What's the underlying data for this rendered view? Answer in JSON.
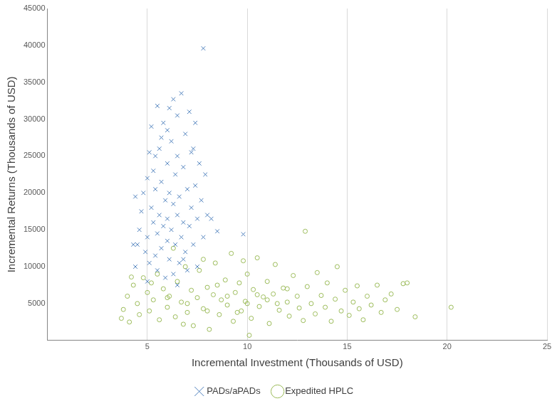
{
  "chart_data": {
    "type": "scatter",
    "x_label": "Incremental Investment (Thousands of USD)",
    "y_label": "Incremental Returns (Thousands of USD)",
    "xlim": [
      0,
      25
    ],
    "xticks": [
      5,
      10,
      15,
      20,
      25
    ],
    "ylim": [
      0,
      45000
    ],
    "yticks": [
      5000,
      10000,
      15000,
      20000,
      25000,
      30000,
      35000,
      40000,
      45000
    ],
    "grid": "x",
    "legend": "bottom",
    "series": [
      {
        "name": "PADs/aPADs",
        "color": "#4f81bd",
        "marker": "x",
        "x": [
          4.5,
          4.6,
          4.7,
          4.8,
          4.9,
          5.0,
          5.0,
          5.1,
          5.1,
          5.2,
          5.2,
          5.3,
          5.3,
          5.4,
          5.4,
          5.5,
          5.5,
          5.5,
          5.6,
          5.6,
          5.7,
          5.7,
          5.8,
          5.8,
          5.9,
          5.9,
          6.0,
          6.0,
          6.0,
          6.1,
          6.1,
          6.1,
          6.2,
          6.2,
          6.3,
          6.3,
          6.3,
          6.4,
          6.4,
          6.5,
          6.5,
          6.5,
          6.6,
          6.6,
          6.7,
          6.7,
          6.8,
          6.8,
          6.9,
          6.9,
          7.0,
          7.0,
          7.1,
          7.1,
          7.2,
          7.2,
          7.3,
          7.4,
          7.4,
          7.5,
          7.5,
          7.6,
          7.7,
          7.8,
          7.8,
          7.9,
          8.0,
          8.2,
          8.5,
          9.8,
          4.3,
          4.4,
          4.4,
          5.0,
          6.5,
          7.3,
          5.7,
          6.0,
          5.4,
          6.8
        ],
        "values": [
          13000,
          15000,
          17500,
          20000,
          12000,
          22000,
          14000,
          25500,
          10500,
          18000,
          29000,
          16000,
          23000,
          11500,
          20500,
          31800,
          14500,
          9500,
          17000,
          26000,
          12500,
          21500,
          15500,
          29500,
          19000,
          8500,
          24000,
          13500,
          16500,
          31500,
          20000,
          11000,
          27000,
          15000,
          32700,
          18500,
          9000,
          22500,
          13000,
          30500,
          17000,
          25000,
          10500,
          19500,
          33500,
          14000,
          23500,
          16000,
          12000,
          28000,
          20500,
          9500,
          31000,
          15500,
          18000,
          25500,
          13000,
          21000,
          29500,
          16500,
          10000,
          24000,
          19000,
          39600,
          14000,
          22500,
          17000,
          16500,
          14800,
          14400,
          13000,
          19500,
          10000,
          8000,
          7500,
          26000,
          27500,
          28500,
          25000,
          11000
        ]
      },
      {
        "name": "Expedited HPLC",
        "color": "#9bbb59",
        "marker": "circle",
        "x": [
          3.7,
          3.8,
          4.0,
          4.1,
          4.3,
          4.5,
          4.6,
          4.8,
          5.0,
          5.1,
          5.3,
          5.5,
          5.6,
          5.8,
          6.0,
          6.1,
          6.3,
          6.4,
          6.5,
          6.7,
          6.9,
          7.0,
          7.2,
          7.3,
          7.5,
          7.6,
          7.8,
          8.0,
          8.1,
          8.3,
          8.4,
          8.6,
          8.7,
          8.9,
          9.0,
          9.2,
          9.3,
          9.4,
          9.6,
          9.7,
          9.9,
          10.0,
          10.1,
          10.2,
          10.3,
          10.5,
          10.6,
          10.8,
          11.0,
          11.1,
          11.3,
          11.4,
          11.6,
          11.8,
          12.0,
          12.1,
          12.3,
          12.5,
          12.6,
          12.8,
          12.9,
          13.0,
          13.2,
          13.4,
          13.5,
          13.7,
          13.9,
          14.0,
          14.2,
          14.4,
          14.5,
          14.7,
          14.9,
          15.1,
          15.3,
          15.5,
          15.6,
          15.8,
          16.0,
          16.2,
          16.5,
          16.7,
          16.9,
          17.2,
          17.5,
          17.8,
          18.0,
          18.4,
          20.2,
          8.0,
          9.0,
          10.0,
          11.0,
          7.0,
          6.0,
          8.5,
          9.5,
          10.5,
          11.5,
          12.0,
          5.2,
          6.8,
          7.8,
          9.8,
          4.2
        ],
        "values": [
          3000,
          4200,
          6000,
          2500,
          7500,
          5000,
          3500,
          8500,
          6500,
          4000,
          5500,
          9000,
          2800,
          7000,
          4500,
          6000,
          12500,
          3200,
          8000,
          5200,
          10000,
          3800,
          6800,
          2000,
          5800,
          9500,
          4300,
          7200,
          1500,
          6200,
          10500,
          3500,
          5500,
          8200,
          4800,
          11800,
          2600,
          6500,
          7800,
          4000,
          5300,
          9000,
          700,
          3000,
          6900,
          11200,
          4600,
          5900,
          8000,
          2300,
          6300,
          10300,
          4100,
          7100,
          5200,
          3300,
          8800,
          6000,
          4400,
          2700,
          14800,
          7300,
          5000,
          3600,
          9200,
          6100,
          4500,
          7800,
          2600,
          5600,
          10000,
          4000,
          6800,
          3400,
          5200,
          7400,
          4300,
          2800,
          6000,
          4800,
          7500,
          3800,
          5500,
          6300,
          4200,
          7700,
          7800,
          3200,
          4500,
          4000,
          6000,
          5000,
          5500,
          5000,
          5800,
          7500,
          3800,
          6200,
          5000,
          7000,
          7800,
          2200,
          11000,
          10800,
          8600
        ]
      }
    ]
  }
}
